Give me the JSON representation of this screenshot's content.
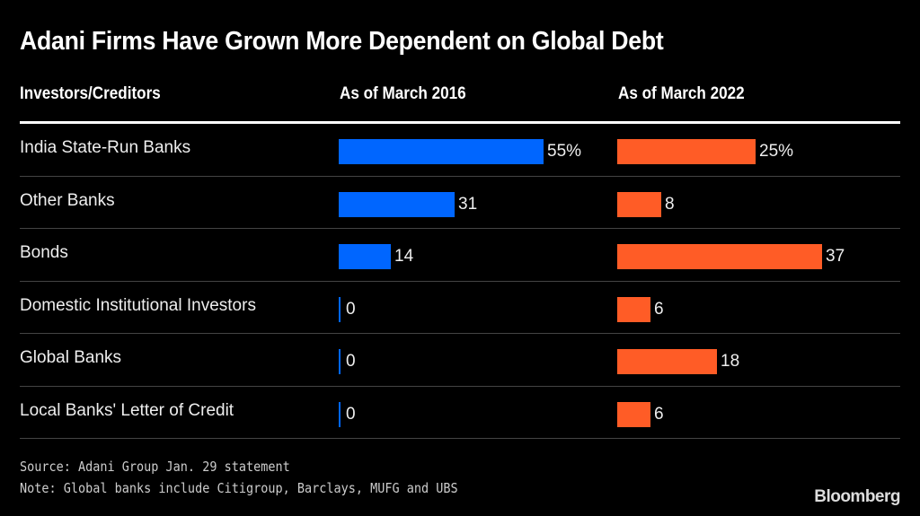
{
  "chart_data": {
    "type": "bar",
    "title": "Adani Firms Have Grown More Dependent on Global Debt",
    "column_headers": [
      "Investors/Creditors",
      "As of March 2016",
      "As of March 2022"
    ],
    "categories": [
      "India State-Run Banks",
      "Other Banks",
      "Bonds",
      "Domestic Institutional Investors",
      "Global Banks",
      "Local Banks' Letter of Credit"
    ],
    "series": [
      {
        "name": "As of March 2016",
        "color": "#0066ff",
        "values": [
          55,
          31,
          14,
          0,
          0,
          0
        ],
        "labels": [
          "55%",
          "31",
          "14",
          "0",
          "0",
          "0"
        ]
      },
      {
        "name": "As of March 2022",
        "color": "#ff5c26",
        "values": [
          25,
          8,
          37,
          6,
          18,
          6
        ],
        "labels": [
          "25%",
          "8",
          "37",
          "6",
          "18",
          "6"
        ]
      }
    ],
    "unit": "%",
    "orientation": "horizontal",
    "grid": false,
    "legend": "none"
  },
  "footer": {
    "source": "Source: Adani Group Jan. 29 statement",
    "note": "Note: Global banks include Citigroup, Barclays, MUFG and UBS",
    "brand": "Bloomberg"
  }
}
